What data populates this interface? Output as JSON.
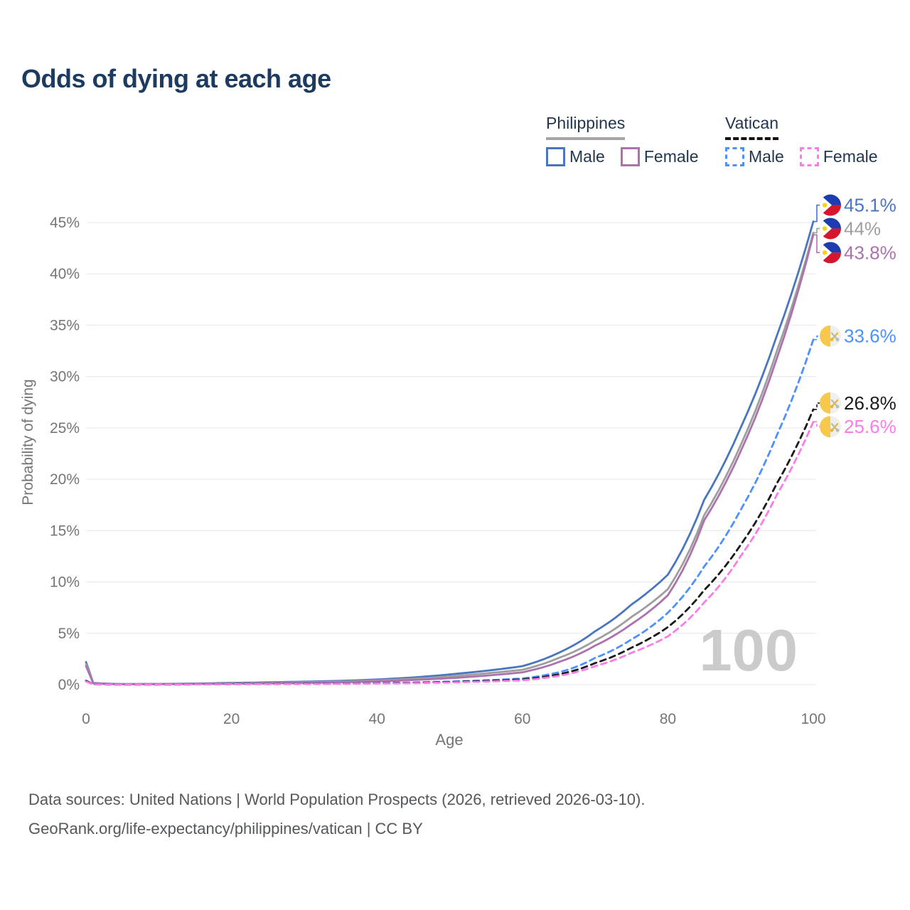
{
  "title": "Odds of dying at each age",
  "legend": {
    "groups": [
      {
        "label": "Philippines",
        "line_style": "solid",
        "line_color": "#a6a6a6",
        "items": [
          {
            "label": "Male",
            "color": "#4a76c0",
            "dashed": false
          },
          {
            "label": "Female",
            "color": "#ad72ae",
            "dashed": false
          }
        ]
      },
      {
        "label": "Vatican",
        "line_style": "dashed",
        "line_color": "#111111",
        "items": [
          {
            "label": "Male",
            "color": "#4d90fe",
            "dashed": true
          },
          {
            "label": "Female",
            "color": "#fb7ce8",
            "dashed": true
          }
        ]
      }
    ]
  },
  "watermark": "100",
  "footer": {
    "line1": "Data sources: United Nations | World Population Prospects (2026, retrieved 2026-03-10).",
    "line2": "GeoRank.org/life-expectancy/philippines/vatican | CC BY"
  },
  "chart_data": {
    "type": "line",
    "title": "Odds of dying at each age",
    "xlabel": "Age",
    "ylabel": "Probability of dying",
    "xlim": [
      0,
      100
    ],
    "ylim": [
      0,
      47
    ],
    "x_ticks": [
      0,
      20,
      40,
      60,
      80,
      100
    ],
    "y_ticks": [
      0,
      5,
      10,
      15,
      20,
      25,
      30,
      35,
      40,
      45
    ],
    "y_tick_format": "percent",
    "grid": "horizontal",
    "legend_position": "top-right",
    "x": [
      0,
      1,
      5,
      10,
      15,
      20,
      25,
      30,
      35,
      40,
      45,
      50,
      55,
      60,
      65,
      70,
      75,
      80,
      85,
      90,
      95,
      100
    ],
    "series": [
      {
        "name": "Philippines Male",
        "color": "#4a76c0",
        "dashed": false,
        "flag": "ph",
        "end_label": "45.1%",
        "values": [
          2.2,
          0.16,
          0.06,
          0.07,
          0.11,
          0.17,
          0.23,
          0.29,
          0.37,
          0.5,
          0.7,
          1.0,
          1.35,
          1.8,
          3.1,
          5.2,
          7.8,
          10.7,
          18.0,
          25.0,
          34.0,
          45.1
        ]
      },
      {
        "name": "Philippines Both sexes",
        "color": "#9e9e9e",
        "dashed": false,
        "flag": "ph",
        "end_label": "44%",
        "values": [
          2.0,
          0.14,
          0.05,
          0.06,
          0.09,
          0.13,
          0.18,
          0.23,
          0.3,
          0.41,
          0.57,
          0.8,
          1.1,
          1.45,
          2.6,
          4.3,
          6.6,
          9.3,
          16.5,
          23.3,
          32.5,
          44.0
        ]
      },
      {
        "name": "Philippines Female",
        "color": "#ad72ae",
        "dashed": false,
        "flag": "ph",
        "end_label": "43.8%",
        "values": [
          1.8,
          0.13,
          0.04,
          0.05,
          0.07,
          0.1,
          0.13,
          0.17,
          0.23,
          0.32,
          0.45,
          0.63,
          0.88,
          1.2,
          2.2,
          3.8,
          5.9,
          8.7,
          16.0,
          22.7,
          31.8,
          43.8
        ]
      },
      {
        "name": "Vatican Male",
        "color": "#4d90fe",
        "dashed": true,
        "flag": "va",
        "end_label": "33.6%",
        "values": [
          0.4,
          0.04,
          0.01,
          0.01,
          0.03,
          0.06,
          0.08,
          0.09,
          0.11,
          0.15,
          0.21,
          0.3,
          0.42,
          0.6,
          1.2,
          2.6,
          4.4,
          7.0,
          11.5,
          17.0,
          24.3,
          33.6
        ]
      },
      {
        "name": "Vatican Both sexes",
        "color": "#1a1a1a",
        "dashed": true,
        "flag": "va",
        "end_label": "26.8%",
        "values": [
          0.35,
          0.03,
          0.009,
          0.009,
          0.025,
          0.05,
          0.07,
          0.08,
          0.1,
          0.13,
          0.18,
          0.25,
          0.36,
          0.5,
          1.0,
          2.1,
          3.6,
          5.6,
          9.2,
          13.6,
          19.6,
          26.8
        ]
      },
      {
        "name": "Vatican Female",
        "color": "#fb7ce8",
        "dashed": true,
        "flag": "va",
        "end_label": "25.6%",
        "values": [
          0.3,
          0.025,
          0.008,
          0.008,
          0.02,
          0.04,
          0.05,
          0.06,
          0.08,
          0.11,
          0.15,
          0.21,
          0.3,
          0.42,
          0.85,
          1.8,
          3.1,
          4.7,
          8.0,
          12.5,
          18.5,
          25.6
        ]
      }
    ]
  }
}
